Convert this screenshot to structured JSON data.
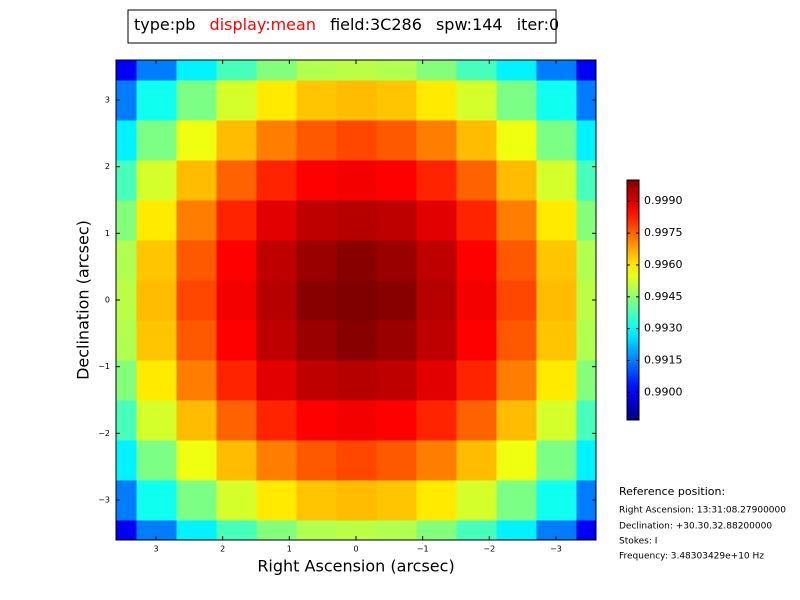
{
  "chart_data": {
    "type": "heatmap",
    "title_parts": [
      {
        "text": "type:pb",
        "color": "#000000"
      },
      {
        "text": "display:mean",
        "color": "#ff0000"
      },
      {
        "text": "field:3C286",
        "color": "#000000"
      },
      {
        "text": "spw:144",
        "color": "#000000"
      },
      {
        "text": "iter:0",
        "color": "#000000"
      }
    ],
    "x_label": "Right Ascension (arcsec)",
    "y_label": "Declination (arcsec)",
    "colormap": "jet",
    "xlim": [
      3.6,
      -3.6
    ],
    "ylim": [
      -3.6,
      3.6
    ],
    "xticks": [
      3,
      2,
      1,
      0,
      {
        "value": -1,
        "label": "−1"
      },
      {
        "value": -2,
        "label": "−2"
      },
      {
        "value": -3,
        "label": "−3"
      }
    ],
    "yticks": [
      {
        "value": -3,
        "label": "−3"
      },
      {
        "value": -2,
        "label": "−2"
      },
      {
        "value": -1,
        "label": "−1"
      },
      0,
      1,
      2,
      3
    ],
    "x": [
      -3.6,
      -3.0,
      -2.4,
      -1.8,
      -1.2,
      -0.6,
      0,
      0.6,
      1.2,
      1.8,
      2.4,
      3.0,
      3.6
    ],
    "y": [
      -3.6,
      -3.0,
      -2.4,
      -1.8,
      -1.2,
      -0.6,
      0,
      0.6,
      1.2,
      1.8,
      2.4,
      3.0,
      3.6
    ],
    "z": [
      [
        0.99,
        0.9915,
        0.9928,
        0.9937,
        0.9944,
        0.9949,
        0.995,
        0.9949,
        0.9944,
        0.9937,
        0.9928,
        0.9915,
        0.99
      ],
      [
        0.9915,
        0.9931,
        0.9943,
        0.9953,
        0.996,
        0.9964,
        0.9965,
        0.9964,
        0.996,
        0.9953,
        0.9943,
        0.9931,
        0.9915
      ],
      [
        0.9928,
        0.9943,
        0.9956,
        0.9965,
        0.9972,
        0.9976,
        0.9978,
        0.9976,
        0.9972,
        0.9965,
        0.9956,
        0.9943,
        0.9928
      ],
      [
        0.9937,
        0.9953,
        0.9965,
        0.9975,
        0.9982,
        0.9986,
        0.9987,
        0.9986,
        0.9982,
        0.9975,
        0.9965,
        0.9953,
        0.9937
      ],
      [
        0.9944,
        0.996,
        0.9972,
        0.9982,
        0.9989,
        0.9993,
        0.9994,
        0.9993,
        0.9989,
        0.9982,
        0.9972,
        0.996,
        0.9944
      ],
      [
        0.9949,
        0.9964,
        0.9976,
        0.9986,
        0.9993,
        0.9997,
        0.9999,
        0.9997,
        0.9993,
        0.9986,
        0.9976,
        0.9964,
        0.9949
      ],
      [
        0.995,
        0.9965,
        0.9978,
        0.9987,
        0.9994,
        0.9999,
        1.0,
        0.9999,
        0.9994,
        0.9987,
        0.9978,
        0.9965,
        0.995
      ],
      [
        0.9949,
        0.9964,
        0.9976,
        0.9986,
        0.9993,
        0.9997,
        0.9999,
        0.9997,
        0.9993,
        0.9986,
        0.9976,
        0.9964,
        0.9949
      ],
      [
        0.9944,
        0.996,
        0.9972,
        0.9982,
        0.9989,
        0.9993,
        0.9994,
        0.9993,
        0.9989,
        0.9982,
        0.9972,
        0.996,
        0.9944
      ],
      [
        0.9937,
        0.9953,
        0.9965,
        0.9975,
        0.9982,
        0.9986,
        0.9987,
        0.9986,
        0.9982,
        0.9975,
        0.9965,
        0.9953,
        0.9937
      ],
      [
        0.9928,
        0.9943,
        0.9956,
        0.9965,
        0.9972,
        0.9976,
        0.9978,
        0.9976,
        0.9972,
        0.9965,
        0.9956,
        0.9943,
        0.9928
      ],
      [
        0.9915,
        0.9931,
        0.9943,
        0.9953,
        0.996,
        0.9964,
        0.9965,
        0.9964,
        0.996,
        0.9953,
        0.9943,
        0.9931,
        0.9915
      ],
      [
        0.99,
        0.9915,
        0.9928,
        0.9937,
        0.9944,
        0.9949,
        0.995,
        0.9949,
        0.9944,
        0.9937,
        0.9928,
        0.9915,
        0.99
      ]
    ],
    "clim": [
      0.9887,
      1.0
    ],
    "cticks": [
      {
        "value": 0.99,
        "label": "0.9900"
      },
      {
        "value": 0.9915,
        "label": "0.9915"
      },
      {
        "value": 0.993,
        "label": "0.9930"
      },
      {
        "value": 0.9945,
        "label": "0.9945"
      },
      {
        "value": 0.996,
        "label": "0.9960"
      },
      {
        "value": 0.9975,
        "label": "0.9975"
      },
      {
        "value": 0.999,
        "label": "0.9990"
      }
    ],
    "reference": {
      "heading": "Reference position:",
      "lines": [
        "Right Ascension: 13:31:08.27900000",
        "Declination: +30.30.32.88200000",
        "Stokes: I",
        "Frequency: 3.48303429e+10 Hz"
      ]
    }
  }
}
